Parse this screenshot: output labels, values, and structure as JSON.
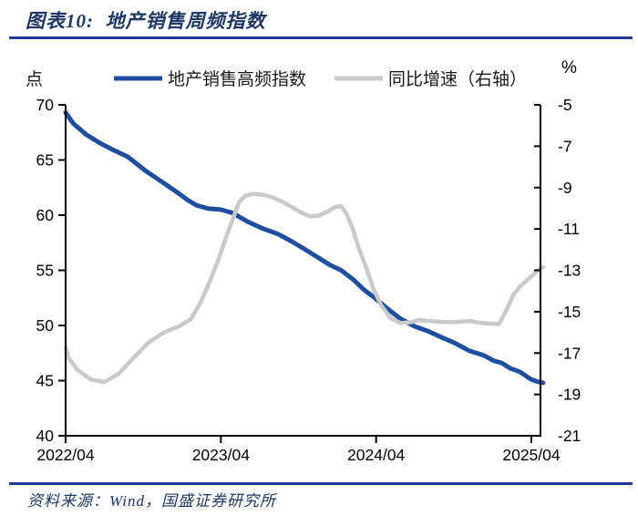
{
  "header": {
    "title": "图表10:  地产销售周频指数"
  },
  "footer": {
    "source": "资料来源：Wind，国盛证券研究所"
  },
  "colors": {
    "navy_text": "#1F3864",
    "rule_blue": "#1E3C96",
    "series_blue": "#1F4E9E",
    "series_gray": "#C9C9C9",
    "axis_black": "#000000"
  },
  "chart_data": {
    "type": "line",
    "title": "地产销售周频指数",
    "left_axis": {
      "label": "点",
      "min": 40,
      "max": 70,
      "ticks": [
        70,
        65,
        60,
        55,
        50,
        45,
        40
      ]
    },
    "right_axis": {
      "label": "%",
      "min": -21,
      "max": -5,
      "ticks": [
        -5,
        -7,
        -9,
        -11,
        -13,
        -15,
        -17,
        -19,
        -21
      ]
    },
    "x_axis": {
      "unit": "months since 2022/04",
      "range": [
        0,
        36.9
      ],
      "tick_months": [
        0,
        12,
        24,
        36
      ],
      "tick_labels": [
        "2022/04",
        "2023/04",
        "2024/04",
        "2025/04"
      ]
    },
    "legend_position": "top",
    "grid": false,
    "series": [
      {
        "name": "地产销售高频指数",
        "axis": "left",
        "color": "#1F4E9E",
        "stroke_width": 5,
        "points": [
          [
            0,
            69.3
          ],
          [
            0.6,
            68.3
          ],
          [
            1.6,
            67.3
          ],
          [
            2.7,
            66.5
          ],
          [
            3.7,
            65.9
          ],
          [
            4.8,
            65.3
          ],
          [
            6.2,
            64.0
          ],
          [
            7.6,
            62.9
          ],
          [
            8.7,
            62.0
          ],
          [
            9.4,
            61.4
          ],
          [
            10.1,
            60.9
          ],
          [
            11.0,
            60.6
          ],
          [
            12.0,
            60.5
          ],
          [
            12.9,
            60.2
          ],
          [
            14.1,
            59.4
          ],
          [
            15.2,
            58.8
          ],
          [
            16.4,
            58.3
          ],
          [
            17.5,
            57.6
          ],
          [
            18.5,
            56.9
          ],
          [
            19.6,
            56.1
          ],
          [
            20.4,
            55.5
          ],
          [
            21.3,
            55.0
          ],
          [
            22.2,
            54.2
          ],
          [
            23.1,
            53.2
          ],
          [
            23.9,
            52.5
          ],
          [
            24.9,
            51.5
          ],
          [
            25.9,
            50.6
          ],
          [
            27.0,
            49.9
          ],
          [
            28.0,
            49.5
          ],
          [
            29.1,
            48.9
          ],
          [
            30.1,
            48.4
          ],
          [
            31.2,
            47.7
          ],
          [
            32.3,
            47.3
          ],
          [
            33.1,
            46.8
          ],
          [
            33.7,
            46.6
          ],
          [
            34.4,
            46.1
          ],
          [
            35.1,
            45.8
          ],
          [
            36.0,
            45.1
          ],
          [
            36.5,
            44.9
          ],
          [
            36.9,
            44.8
          ]
        ]
      },
      {
        "name": "同比增速（右轴）",
        "axis": "right",
        "color": "#C9C9C9",
        "stroke_width": 4.5,
        "points": [
          [
            0,
            -16.7
          ],
          [
            0.2,
            -17.2
          ],
          [
            0.9,
            -17.8
          ],
          [
            2.0,
            -18.3
          ],
          [
            3.0,
            -18.4
          ],
          [
            4.1,
            -18.0
          ],
          [
            5.3,
            -17.2
          ],
          [
            6.4,
            -16.5
          ],
          [
            7.6,
            -16.0
          ],
          [
            8.8,
            -15.7
          ],
          [
            9.7,
            -15.35
          ],
          [
            10.4,
            -14.6
          ],
          [
            11.1,
            -13.6
          ],
          [
            11.8,
            -12.5
          ],
          [
            12.4,
            -11.4
          ],
          [
            13.0,
            -10.4
          ],
          [
            13.4,
            -9.7
          ],
          [
            13.9,
            -9.4
          ],
          [
            14.5,
            -9.3
          ],
          [
            15.3,
            -9.35
          ],
          [
            16.1,
            -9.5
          ],
          [
            16.8,
            -9.7
          ],
          [
            17.5,
            -9.95
          ],
          [
            18.2,
            -10.2
          ],
          [
            18.9,
            -10.4
          ],
          [
            19.6,
            -10.35
          ],
          [
            20.3,
            -10.15
          ],
          [
            20.8,
            -9.95
          ],
          [
            21.3,
            -9.9
          ],
          [
            21.7,
            -10.25
          ],
          [
            22.2,
            -11.0
          ],
          [
            22.7,
            -12.0
          ],
          [
            23.2,
            -12.8
          ],
          [
            23.8,
            -13.9
          ],
          [
            24.4,
            -14.7
          ],
          [
            25.1,
            -15.3
          ],
          [
            25.9,
            -15.55
          ],
          [
            26.8,
            -15.5
          ],
          [
            27.3,
            -15.4
          ],
          [
            28.2,
            -15.45
          ],
          [
            29.1,
            -15.5
          ],
          [
            30.1,
            -15.5
          ],
          [
            31.2,
            -15.45
          ],
          [
            32.2,
            -15.55
          ],
          [
            33.5,
            -15.6
          ],
          [
            34.1,
            -14.9
          ],
          [
            34.6,
            -14.2
          ],
          [
            35.1,
            -13.8
          ],
          [
            35.8,
            -13.4
          ],
          [
            36.6,
            -12.95
          ],
          [
            36.9,
            -12.85
          ]
        ]
      }
    ]
  }
}
